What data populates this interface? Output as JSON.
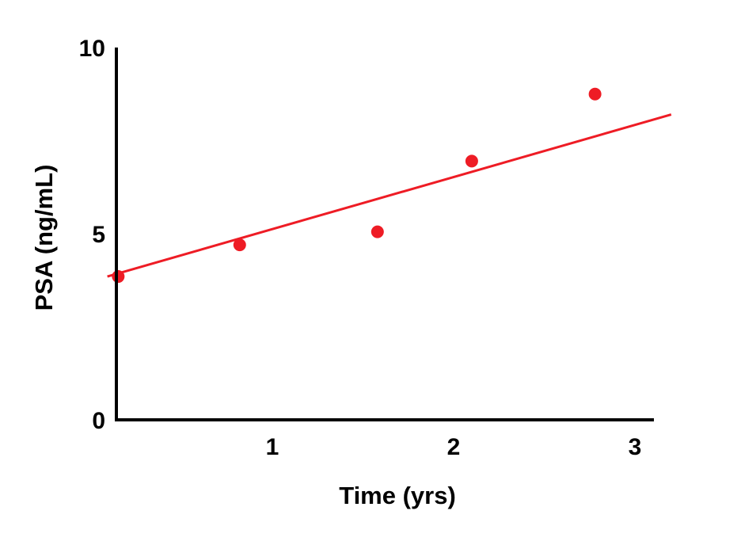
{
  "chart_data": {
    "type": "scatter",
    "title": "",
    "xlabel": "Time (yrs)",
    "ylabel": "PSA (ng/mL)",
    "xlim": [
      0,
      3.05
    ],
    "ylim": [
      0,
      10
    ],
    "x_ticks": [
      {
        "value": 1,
        "label": "1"
      },
      {
        "value": 2,
        "label": "2"
      },
      {
        "value": 3,
        "label": "3"
      }
    ],
    "y_ticks": [
      {
        "value": 0,
        "label": "0"
      },
      {
        "value": 5,
        "label": "5"
      },
      {
        "value": 10,
        "label": "10"
      }
    ],
    "series": [
      {
        "points": [
          {
            "x": 0.15,
            "y": 3.85
          },
          {
            "x": 0.82,
            "y": 4.7
          },
          {
            "x": 1.58,
            "y": 5.05
          },
          {
            "x": 2.1,
            "y": 6.95
          },
          {
            "x": 2.78,
            "y": 8.75
          }
        ],
        "color": "#ee1c25"
      }
    ],
    "trendline": {
      "type": "linear",
      "from": {
        "x": 0.09,
        "y": 3.85
      },
      "to": {
        "x": 3.2,
        "y": 8.2
      },
      "color": "#ee1c25"
    },
    "grid": false,
    "legend": "none",
    "axis_color": "#000000"
  }
}
